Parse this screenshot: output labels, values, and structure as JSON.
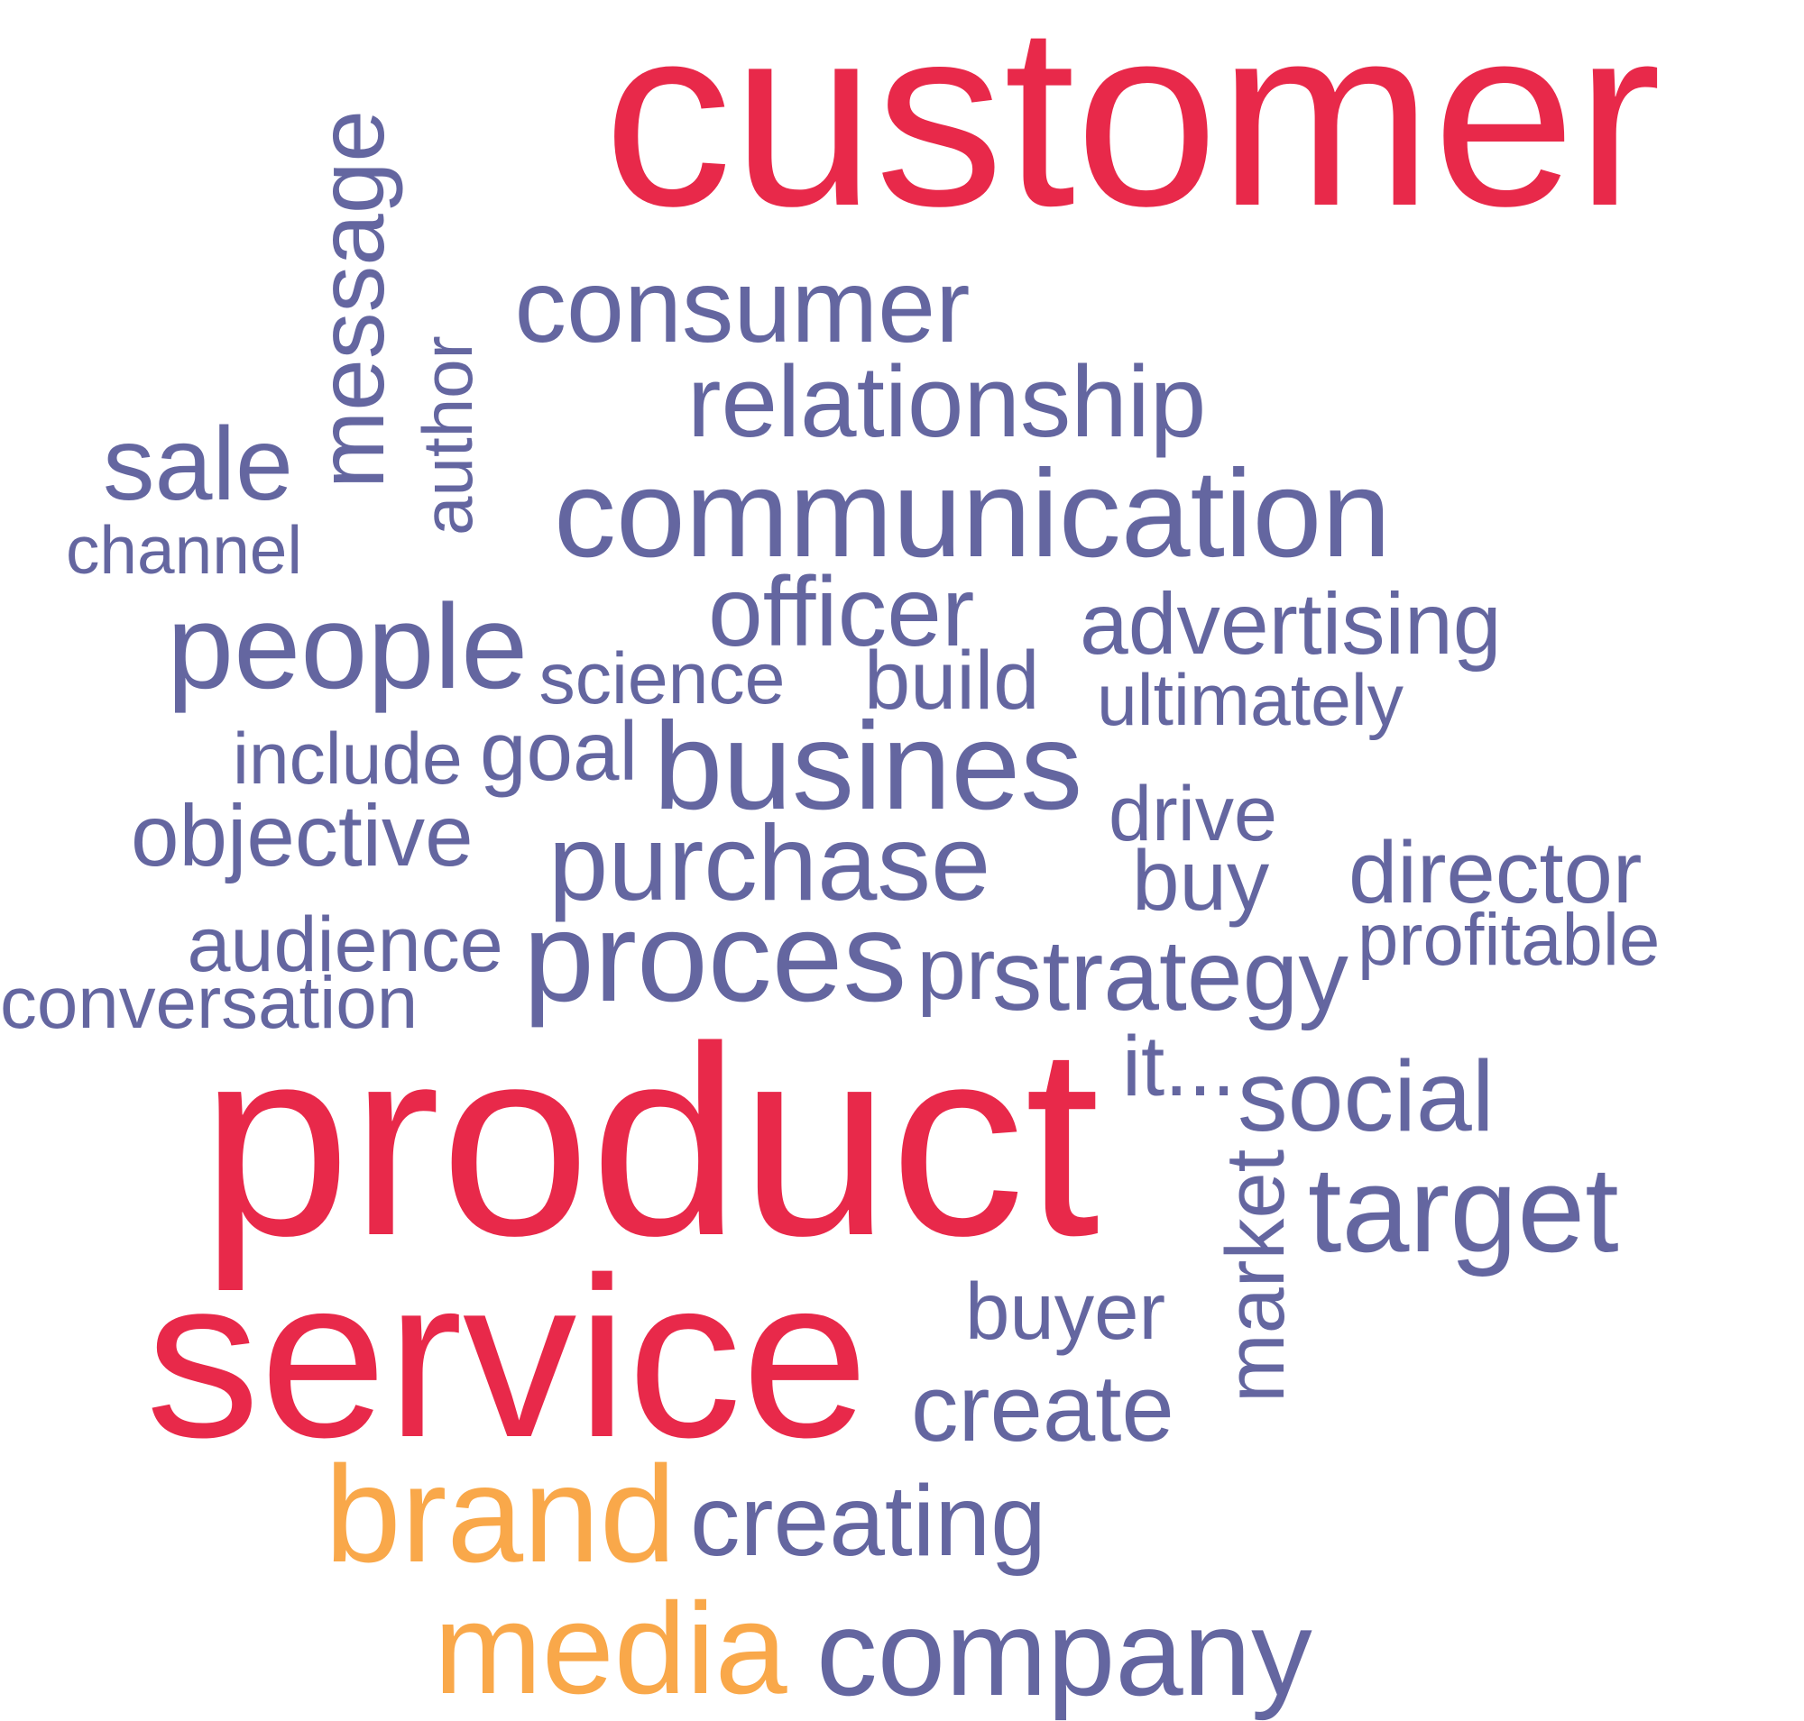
{
  "colors": {
    "primary": "#E8294A",
    "accent": "#F9A84A",
    "secondary": "#6466A0",
    "background": "#FFFFFF"
  },
  "words": [
    {
      "text": "customer",
      "weight": "primary"
    },
    {
      "text": "product",
      "weight": "primary"
    },
    {
      "text": "service",
      "weight": "primary"
    },
    {
      "text": "brand",
      "weight": "accent"
    },
    {
      "text": "media",
      "weight": "accent"
    },
    {
      "text": "message",
      "weight": "secondary",
      "vertical": true
    },
    {
      "text": "author",
      "weight": "secondary",
      "vertical": true
    },
    {
      "text": "consumer",
      "weight": "secondary"
    },
    {
      "text": "relationship",
      "weight": "secondary"
    },
    {
      "text": "sale",
      "weight": "secondary"
    },
    {
      "text": "communication",
      "weight": "secondary"
    },
    {
      "text": "channel",
      "weight": "secondary"
    },
    {
      "text": "people",
      "weight": "secondary"
    },
    {
      "text": "officer",
      "weight": "secondary"
    },
    {
      "text": "advertising",
      "weight": "secondary"
    },
    {
      "text": "science",
      "weight": "secondary"
    },
    {
      "text": "build",
      "weight": "secondary"
    },
    {
      "text": "ultimately",
      "weight": "secondary"
    },
    {
      "text": "include",
      "weight": "secondary"
    },
    {
      "text": "goal",
      "weight": "secondary"
    },
    {
      "text": "busines",
      "weight": "secondary"
    },
    {
      "text": "drive",
      "weight": "secondary"
    },
    {
      "text": "objective",
      "weight": "secondary"
    },
    {
      "text": "purchase",
      "weight": "secondary"
    },
    {
      "text": "buy",
      "weight": "secondary"
    },
    {
      "text": "director",
      "weight": "secondary"
    },
    {
      "text": "audience",
      "weight": "secondary"
    },
    {
      "text": "proces",
      "weight": "secondary"
    },
    {
      "text": "profitable",
      "weight": "secondary"
    },
    {
      "text": "pr",
      "weight": "secondary"
    },
    {
      "text": "strategy",
      "weight": "secondary"
    },
    {
      "text": "conversation",
      "weight": "secondary"
    },
    {
      "text": "it...",
      "weight": "secondary"
    },
    {
      "text": "social",
      "weight": "secondary"
    },
    {
      "text": "market",
      "weight": "secondary",
      "vertical": true
    },
    {
      "text": "target",
      "weight": "secondary"
    },
    {
      "text": "buyer",
      "weight": "secondary"
    },
    {
      "text": "create",
      "weight": "secondary"
    },
    {
      "text": "creating",
      "weight": "secondary"
    },
    {
      "text": "company",
      "weight": "secondary"
    }
  ]
}
